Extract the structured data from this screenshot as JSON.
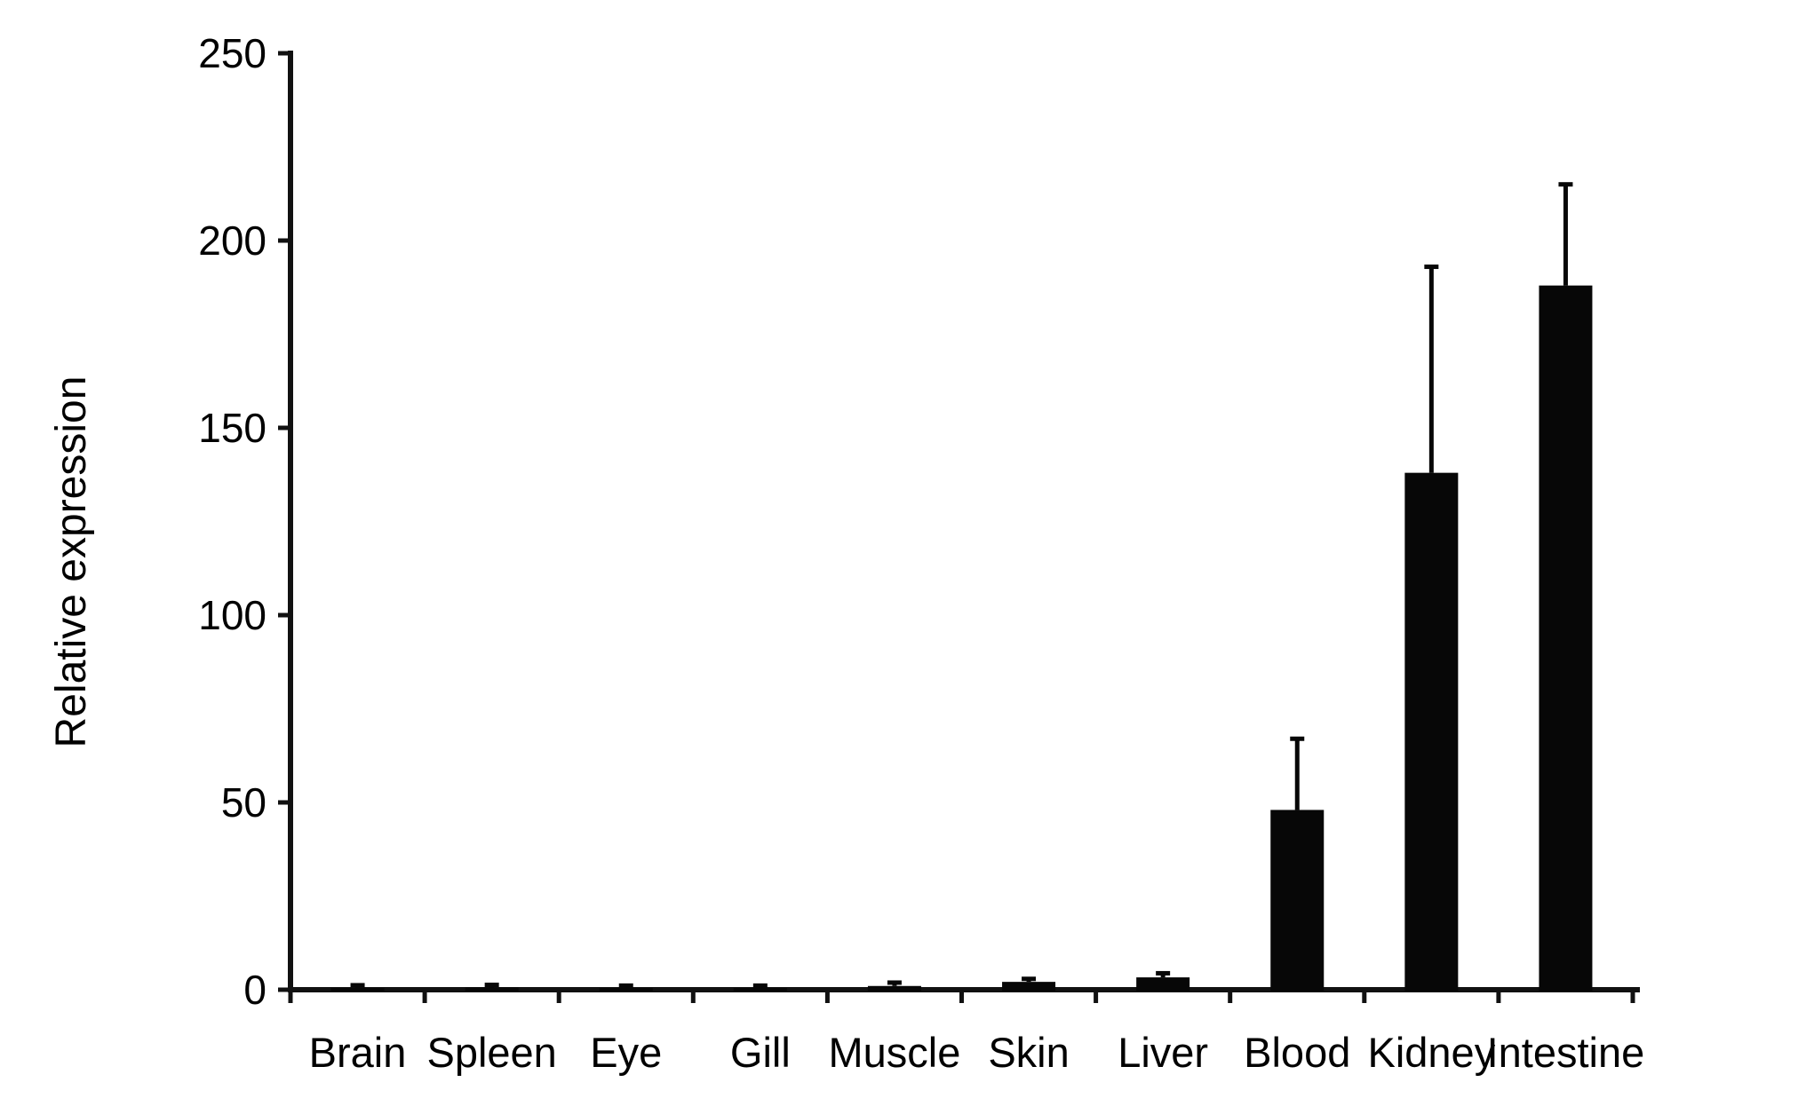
{
  "figure": {
    "background": "#ffffff",
    "bar_color": "#070707",
    "axis_color": "#111111",
    "text_color": "#000000"
  },
  "chart_data": {
    "type": "bar",
    "title": "",
    "xlabel": "",
    "ylabel": "Relative expression",
    "categories": [
      "Brain",
      "Spleen",
      "Eye",
      "Gill",
      "Muscle",
      "Skin",
      "Liver",
      "Blood",
      "Kidney",
      "Intestine"
    ],
    "values": [
      0.5,
      0.6,
      0.5,
      0.5,
      1.0,
      2.1,
      3.3,
      48,
      138,
      188
    ],
    "errors_upper": [
      0.7,
      0.7,
      0.6,
      0.6,
      0.9,
      0.8,
      1.1,
      19,
      55,
      27
    ],
    "ylim": [
      0,
      250
    ],
    "yticks": [
      0,
      50,
      100,
      150,
      200,
      250
    ],
    "grid": false,
    "legend": false,
    "error_bars": "upper only, with caps"
  }
}
